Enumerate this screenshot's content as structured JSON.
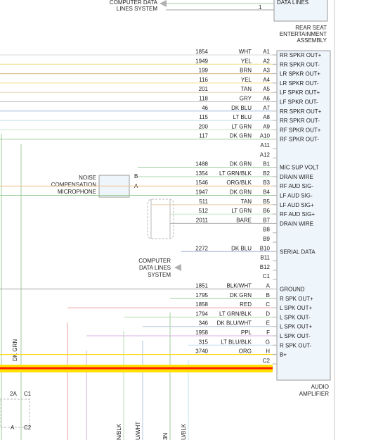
{
  "top_left_label": [
    "COMPUTER DATA",
    "LINES SYSTEM"
  ],
  "top_pin": "1",
  "top_box_label": "DATA LINES",
  "rse_label": [
    "REAR SEAT",
    "ENTERTAINMENT",
    "ASSEMBLY"
  ],
  "noise_label": [
    "NOISE",
    "COMPENSATION",
    "MICROPHONE"
  ],
  "mic_pins": [
    "B",
    "A"
  ],
  "mid_label": [
    "COMPUTER",
    "DATA LINES",
    "SYSTEM"
  ],
  "amp_label": [
    "AUDIO",
    "AMPLIFIER"
  ],
  "vertical_wire_label": "DK GRN",
  "bottom_left": {
    "c1": "C1",
    "a2": "2A",
    "a": "A",
    "c2": "C2"
  },
  "bottom_wire_labels": [
    "N/BLK",
    "U/WHT",
    "3N",
    "U/BLK"
  ],
  "rows": [
    {
      "circuit": "1854",
      "color": "WHT",
      "pin": "A1",
      "func": "RR SPKR OUT+",
      "wire": "#d9d9d9"
    },
    {
      "circuit": "1949",
      "color": "YEL",
      "pin": "A2",
      "func": "RR SPKR OUT-",
      "wire": "#efe08a"
    },
    {
      "circuit": "199",
      "color": "BRN",
      "pin": "A3",
      "func": "LR SPKR OUT+",
      "wire": "#d8b58a"
    },
    {
      "circuit": "116",
      "color": "YEL",
      "pin": "A4",
      "func": "LR SPKR OUT-",
      "wire": "#efe08a"
    },
    {
      "circuit": "201",
      "color": "TAN",
      "pin": "A5",
      "func": "LF SPKR OUT+",
      "wire": "#e8d5b0"
    },
    {
      "circuit": "118",
      "color": "GRY",
      "pin": "A6",
      "func": "LF SPKR OUT-",
      "wire": "#c4c4c4"
    },
    {
      "circuit": "46",
      "color": "DK BLU",
      "pin": "A7",
      "func": "RR SPKR OUT+",
      "wire": "#9fb7d9"
    },
    {
      "circuit": "115",
      "color": "LT BLU",
      "pin": "A8",
      "func": "RR SPKR OUT-",
      "wire": "#bfe0ef"
    },
    {
      "circuit": "200",
      "color": "LT GRN",
      "pin": "A9",
      "func": "RF SPKR OUT+",
      "wire": "#c4e8c4"
    },
    {
      "circuit": "117",
      "color": "DK GRN",
      "pin": "A10",
      "func": "RF SPKR OUT-",
      "wire": "#9ccc9c"
    },
    {
      "circuit": "",
      "color": "",
      "pin": "A11",
      "func": "",
      "wire": ""
    },
    {
      "circuit": "",
      "color": "",
      "pin": "A12",
      "func": "",
      "wire": ""
    },
    {
      "circuit": "1488",
      "color": "DK GRN",
      "pin": "B1",
      "func": "MIC SUP VOLT",
      "wire": "#9ccc9c"
    },
    {
      "circuit": "1354",
      "color": "LT GRN/BLK",
      "pin": "B2",
      "func": "DRAIN WIRE",
      "wire": "#b4dcb4"
    },
    {
      "circuit": "1546",
      "color": "ORG/BLK",
      "pin": "B3",
      "func": "RF AUD SIG-",
      "wire": "#f0c08a"
    },
    {
      "circuit": "1947",
      "color": "DK GRN",
      "pin": "B4",
      "func": "LF AUD SIG-",
      "wire": "#9ccc9c"
    },
    {
      "circuit": "511",
      "color": "TAN",
      "pin": "B5",
      "func": "LF AUD SIG+",
      "wire": "#e8d5b0"
    },
    {
      "circuit": "512",
      "color": "LT GRN",
      "pin": "B6",
      "func": "RF AUD SIG+",
      "wire": "#c4e8c4"
    },
    {
      "circuit": "2011",
      "color": "BARE",
      "pin": "B7",
      "func": "DRAIN WIRE",
      "wire": "#b0b0b0"
    },
    {
      "circuit": "",
      "color": "",
      "pin": "B8",
      "func": "",
      "wire": ""
    },
    {
      "circuit": "",
      "color": "",
      "pin": "B9",
      "func": "",
      "wire": ""
    },
    {
      "circuit": "2272",
      "color": "DK BLU",
      "pin": "B10",
      "func": "SERIAL DATA",
      "wire": "#9fb7d9"
    },
    {
      "circuit": "",
      "color": "",
      "pin": "B11",
      "func": "",
      "wire": ""
    },
    {
      "circuit": "",
      "color": "",
      "pin": "B12",
      "func": "",
      "wire": ""
    },
    {
      "circuit": "",
      "color": "",
      "pin": "C1",
      "func": "",
      "wire": ""
    },
    {
      "circuit": "1851",
      "color": "BLK/WHT",
      "pin": "A",
      "func": "GROUND",
      "wire": "#a0a0a0"
    },
    {
      "circuit": "1795",
      "color": "DK GRN",
      "pin": "B",
      "func": "R SPK OUT+",
      "wire": "#9ccc9c"
    },
    {
      "circuit": "1858",
      "color": "RED",
      "pin": "C",
      "func": "L SPK OUT+",
      "wire": "#f0a0a0"
    },
    {
      "circuit": "1794",
      "color": "LT GRN/BLK",
      "pin": "D",
      "func": "L SPK OUT-",
      "wire": "#b4dcb4"
    },
    {
      "circuit": "346",
      "color": "DK BLU/WHT",
      "pin": "E",
      "func": "L SPK OUT+",
      "wire": "#b0c4e0"
    },
    {
      "circuit": "1958",
      "color": "PPL",
      "pin": "F",
      "func": "L SPK OUT-",
      "wire": "#d8b0e0"
    },
    {
      "circuit": "315",
      "color": "LT BLU/BLK",
      "pin": "G",
      "func": "R SPK OUT-",
      "wire": "#bfe0ef"
    },
    {
      "circuit": "3740",
      "color": "ORG",
      "pin": "H",
      "func": "B+",
      "wire": "#ffd800"
    },
    {
      "circuit": "",
      "color": "",
      "pin": "C2",
      "func": "",
      "wire": ""
    }
  ]
}
